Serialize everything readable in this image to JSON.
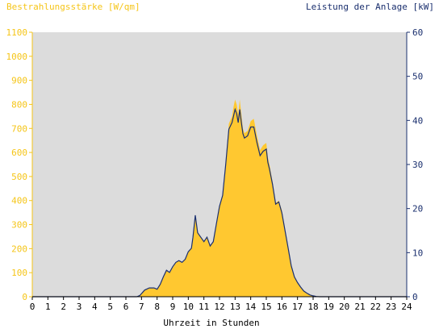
{
  "chart_data": {
    "type": "area",
    "left_axis_title": "Bestrahlungsstärke [W/qm]",
    "right_axis_title": "Leistung der Anlage [kW]",
    "xlabel": "Uhrzeit in Stunden",
    "xlim": [
      0,
      24
    ],
    "ylim_left": [
      0,
      1100
    ],
    "ylim_right": [
      0,
      60
    ],
    "x_ticks": [
      "0",
      "1",
      "2",
      "3",
      "4",
      "5",
      "6",
      "7",
      "8",
      "9",
      "10",
      "11",
      "12",
      "13",
      "14",
      "15",
      "16",
      "17",
      "18",
      "19",
      "20",
      "21",
      "22",
      "23",
      "24"
    ],
    "y_left_ticks": [
      "0",
      "100",
      "200",
      "300",
      "400",
      "500",
      "600",
      "700",
      "800",
      "900",
      "1000",
      "1100"
    ],
    "y_right_ticks": [
      "0",
      "10",
      "20",
      "30",
      "40",
      "50",
      "60"
    ],
    "grid": false,
    "plot_background": "#dcdcdc",
    "series": [
      {
        "name": "Bestrahlungsstärke [W/qm]",
        "axis": "left",
        "style": "filled-area",
        "color": "#ffc830",
        "x": [
          0,
          6.7,
          6.9,
          7.2,
          7.5,
          7.8,
          8.0,
          8.2,
          8.4,
          8.6,
          8.8,
          9.0,
          9.2,
          9.4,
          9.6,
          9.8,
          10.0,
          10.2,
          10.3,
          10.45,
          10.6,
          10.8,
          11.0,
          11.2,
          11.4,
          11.6,
          11.8,
          12.0,
          12.2,
          12.4,
          12.6,
          12.8,
          12.9,
          13.0,
          13.1,
          13.2,
          13.3,
          13.4,
          13.5,
          13.6,
          13.8,
          14.0,
          14.2,
          14.4,
          14.6,
          14.8,
          15.0,
          15.1,
          15.2,
          15.4,
          15.6,
          15.8,
          16.0,
          16.2,
          16.4,
          16.6,
          16.8,
          17.0,
          17.2,
          17.4,
          17.6,
          17.8,
          18.0,
          18.2,
          18.4,
          24
        ],
        "values": [
          0,
          0,
          5,
          25,
          35,
          35,
          30,
          50,
          80,
          110,
          100,
          120,
          140,
          150,
          140,
          155,
          185,
          200,
          250,
          330,
          270,
          250,
          230,
          250,
          210,
          230,
          300,
          380,
          420,
          560,
          720,
          750,
          790,
          820,
          800,
          760,
          820,
          760,
          700,
          680,
          690,
          730,
          740,
          670,
          610,
          630,
          640,
          580,
          550,
          480,
          390,
          400,
          360,
          280,
          200,
          130,
          85,
          60,
          40,
          25,
          15,
          8,
          4,
          1,
          0,
          0
        ]
      },
      {
        "name": "Leistung der Anlage [kW]",
        "axis": "right",
        "style": "line",
        "color": "#1a2f6e",
        "x": [
          0,
          6.7,
          6.9,
          7.2,
          7.5,
          7.8,
          8.0,
          8.2,
          8.4,
          8.6,
          8.8,
          9.0,
          9.2,
          9.4,
          9.6,
          9.8,
          10.0,
          10.2,
          10.3,
          10.45,
          10.6,
          10.8,
          11.0,
          11.2,
          11.4,
          11.6,
          11.8,
          12.0,
          12.2,
          12.4,
          12.6,
          12.8,
          12.9,
          13.0,
          13.1,
          13.2,
          13.3,
          13.4,
          13.5,
          13.6,
          13.8,
          14.0,
          14.2,
          14.4,
          14.6,
          14.8,
          15.0,
          15.1,
          15.2,
          15.4,
          15.6,
          15.8,
          16.0,
          16.2,
          16.4,
          16.6,
          16.8,
          17.0,
          17.2,
          17.4,
          17.6,
          17.8,
          18.0,
          18.2,
          18.4,
          24
        ],
        "values": [
          0,
          0,
          0.3,
          1.5,
          2,
          2,
          1.7,
          2.8,
          4.5,
          6,
          5.5,
          6.8,
          7.8,
          8.2,
          7.8,
          8.5,
          10.2,
          11,
          13.5,
          18.5,
          14.5,
          13.5,
          12.5,
          13.5,
          11.5,
          12.5,
          16.5,
          20.5,
          23,
          30,
          38,
          39.5,
          41,
          42.5,
          41.5,
          39.5,
          42.5,
          39.5,
          37,
          36,
          36.5,
          38.5,
          38.5,
          35,
          32,
          33,
          33.5,
          30.5,
          29,
          25.5,
          21,
          21.5,
          19,
          15,
          11,
          7,
          4.5,
          3.2,
          2.2,
          1.3,
          0.8,
          0.4,
          0.2,
          0.05,
          0,
          0
        ]
      }
    ]
  }
}
